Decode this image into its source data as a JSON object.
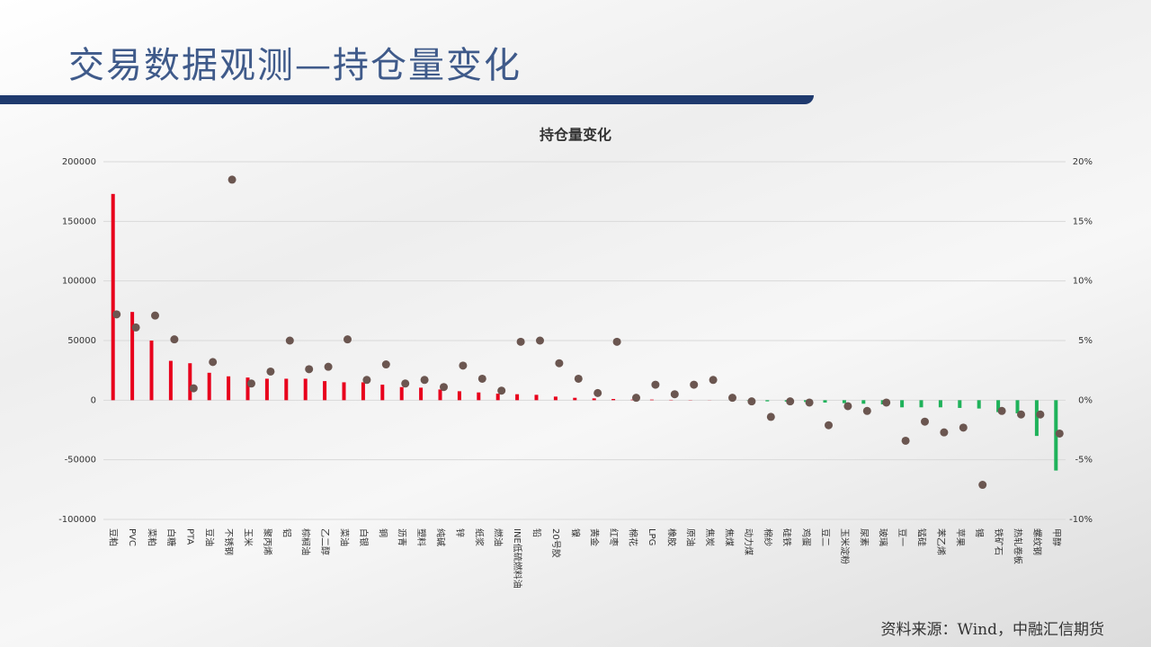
{
  "header": {
    "title": "交易数据观测—持仓量变化"
  },
  "footer": {
    "source": "资料来源：Wind，中融汇信期货"
  },
  "chart_data": {
    "type": "bar",
    "title": "持仓量变化",
    "categories": [
      "豆粕",
      "PVC",
      "菜粕",
      "白糖",
      "PTA",
      "豆油",
      "不锈钢",
      "玉米",
      "聚丙烯",
      "铝",
      "棕榈油",
      "乙二醇",
      "菜油",
      "白银",
      "铜",
      "沥青",
      "塑料",
      "纯碱",
      "锌",
      "纸浆",
      "燃油",
      "INE低硫燃料油",
      "铅",
      "20号胶",
      "镍",
      "黄金",
      "红枣",
      "棉花",
      "LPG",
      "橡胶",
      "原油",
      "焦炭",
      "焦煤",
      "动力煤",
      "棉纱",
      "硅铁",
      "鸡蛋",
      "豆二",
      "玉米淀粉",
      "尿素",
      "玻璃",
      "豆一",
      "锰硅",
      "苯乙烯",
      "苹果",
      "锡",
      "铁矿石",
      "热轧卷板",
      "螺纹钢",
      "甲醇"
    ],
    "series": [
      {
        "type": "bar",
        "color": "#e8001c",
        "negative_color": "#1fb25a",
        "values": [
          173000,
          74000,
          50000,
          33000,
          31000,
          23000,
          20000,
          19000,
          18000,
          18000,
          18000,
          16000,
          15000,
          15000,
          13000,
          11000,
          10500,
          9000,
          7500,
          6500,
          5500,
          5000,
          4500,
          3000,
          2000,
          1500,
          1000,
          500,
          500,
          300,
          200,
          100,
          0,
          -200,
          -1000,
          -1200,
          -1500,
          -2000,
          -2500,
          -3000,
          -3500,
          -6000,
          -6000,
          -6000,
          -6500,
          -7000,
          -10000,
          -11000,
          -30000,
          -59000
        ]
      },
      {
        "type": "scatter",
        "axis": "y2",
        "color": "#6b5650",
        "values": [
          7.2,
          6.1,
          7.1,
          5.1,
          1.0,
          3.2,
          18.5,
          1.4,
          2.4,
          5.0,
          2.6,
          2.8,
          5.1,
          1.7,
          3.0,
          1.4,
          1.7,
          1.1,
          2.9,
          1.8,
          0.8,
          4.9,
          5.0,
          3.1,
          1.8,
          0.6,
          4.9,
          0.2,
          1.3,
          0.5,
          1.3,
          1.7,
          0.2,
          -0.1,
          -1.4,
          -0.1,
          -0.2,
          -2.1,
          -0.5,
          -0.9,
          -0.2,
          -3.4,
          -1.8,
          -2.7,
          -2.3,
          -7.1,
          -0.9,
          -1.2,
          -1.2,
          -2.8
        ]
      }
    ],
    "ylim": [
      -100000,
      200000
    ],
    "yticks": [
      -100000,
      -50000,
      0,
      50000,
      100000,
      150000,
      200000
    ],
    "y2lim": [
      -10,
      20
    ],
    "y2ticks": [
      {
        "value": -10,
        "label": "-10%"
      },
      {
        "value": -5,
        "label": "-5%"
      },
      {
        "value": 0,
        "label": "0%"
      },
      {
        "value": 5,
        "label": "5%"
      },
      {
        "value": 10,
        "label": "10%"
      },
      {
        "value": 15,
        "label": "15%"
      },
      {
        "value": 20,
        "label": "20%"
      }
    ],
    "grid": true
  }
}
